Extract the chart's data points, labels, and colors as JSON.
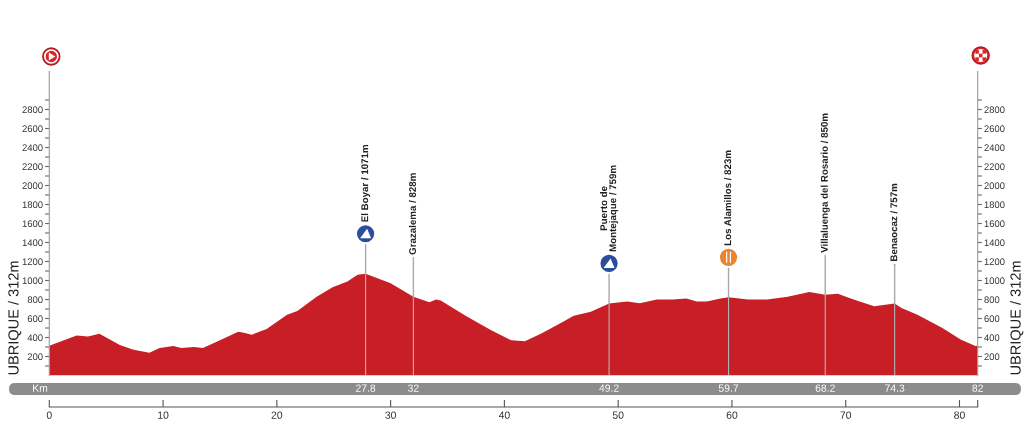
{
  "chart_data": {
    "type": "area",
    "color": "#c81e25",
    "x": [
      0,
      2.4,
      3.4,
      4.4,
      6.2,
      7.4,
      8.8,
      9.7,
      10.9,
      11.6,
      12.7,
      13.5,
      15.0,
      16.6,
      17.1,
      17.8,
      19.1,
      20.9,
      21.8,
      23.5,
      24.9,
      26.2,
      27.1,
      27.8,
      30.0,
      32,
      33.4,
      34.0,
      34.4,
      36.7,
      38.8,
      40.6,
      41.8,
      43.2,
      44.6,
      46.1,
      47.6,
      49.2,
      50.8,
      51.9,
      53.4,
      54.8,
      56.0,
      56.9,
      57.8,
      59.0,
      59.7,
      61.4,
      63.1,
      64.9,
      66.8,
      68.2,
      69.3,
      70.7,
      72.5,
      74.3,
      74.9,
      76.3,
      78.5,
      80.1,
      81.4,
      81.6
    ],
    "values": [
      312,
      420,
      410,
      440,
      320,
      270,
      240,
      290,
      310,
      290,
      300,
      290,
      370,
      460,
      450,
      430,
      490,
      640,
      680,
      830,
      930,
      990,
      1060,
      1071,
      970,
      828,
      770,
      800,
      790,
      620,
      480,
      370,
      360,
      440,
      530,
      630,
      670,
      759,
      780,
      760,
      800,
      800,
      810,
      780,
      780,
      810,
      823,
      800,
      800,
      830,
      880,
      850,
      860,
      800,
      730,
      757,
      710,
      640,
      500,
      380,
      310,
      312
    ],
    "ylabel": "UBRIQUE / 312m",
    "y2label": "UBRIQUE / 312m",
    "xlim": [
      0,
      81.6
    ],
    "xticks": [
      0,
      10,
      20,
      30,
      40,
      50,
      60,
      70,
      80,
      {
        "value": 81.6,
        "label": null
      }
    ],
    "x2lim": [
      0,
      81.6
    ],
    "x2ticks": [
      27.8,
      32,
      49.2,
      59.7,
      68.2,
      74.3,
      {
        "value": 81.6,
        "label": "82"
      }
    ],
    "x2label": "Km",
    "ylim": [
      0,
      3200
    ],
    "yticks": [
      {
        "value": 100,
        "label": null
      },
      200,
      {
        "value": 300,
        "label": null
      },
      400,
      {
        "value": 500,
        "label": null
      },
      600,
      {
        "value": 700,
        "label": null
      },
      800,
      {
        "value": 900,
        "label": null
      },
      1000,
      {
        "value": 1100,
        "label": null
      },
      1200,
      {
        "value": 1300,
        "label": null
      },
      1400,
      {
        "value": 1500,
        "label": null
      },
      1600,
      {
        "value": 1700,
        "label": null
      },
      1800,
      {
        "value": 1900,
        "label": null
      },
      2000,
      {
        "value": 2100,
        "label": null
      },
      2200,
      {
        "value": 2300,
        "label": null
      },
      2400,
      {
        "value": 2500,
        "label": null
      },
      2600,
      {
        "value": 2700,
        "label": null
      },
      2800,
      {
        "value": 2900,
        "label": null
      }
    ],
    "y2lim": [
      0,
      3200
    ],
    "y2ticks": [
      {
        "value": 100,
        "label": null
      },
      200,
      {
        "value": 300,
        "label": null
      },
      400,
      {
        "value": 500,
        "label": null
      },
      600,
      {
        "value": 700,
        "label": null
      },
      800,
      {
        "value": 900,
        "label": null
      },
      1000,
      {
        "value": 1100,
        "label": null
      },
      1200,
      {
        "value": 1300,
        "label": null
      },
      1400,
      {
        "value": 1500,
        "label": null
      },
      1600,
      {
        "value": 1700,
        "label": null
      },
      1800,
      {
        "value": 1900,
        "label": null
      },
      2000,
      {
        "value": 2100,
        "label": null
      },
      2200,
      {
        "value": 2300,
        "label": null
      },
      2400,
      {
        "value": 2500,
        "label": null
      },
      2600,
      {
        "value": 2700,
        "label": null
      },
      2800,
      {
        "value": 2900,
        "label": null
      }
    ],
    "annotations": [
      {
        "text": "El Boyar / 1071m",
        "x": 27.8,
        "y": 1071
      },
      {
        "text": "Grazalema / 828m",
        "x": 32,
        "y": 828
      },
      {
        "text": "Puerto de\nMontejaque / 759m",
        "x": 49.2,
        "y": 759
      },
      {
        "text": "Los Alamillos / 823m",
        "x": 59.7,
        "y": 823
      },
      {
        "text": "Villaluenga del Rosario / 850m",
        "x": 68.2,
        "y": 850
      },
      {
        "text": "Benaocaz / 757m",
        "x": 74.3,
        "y": 757
      }
    ]
  }
}
